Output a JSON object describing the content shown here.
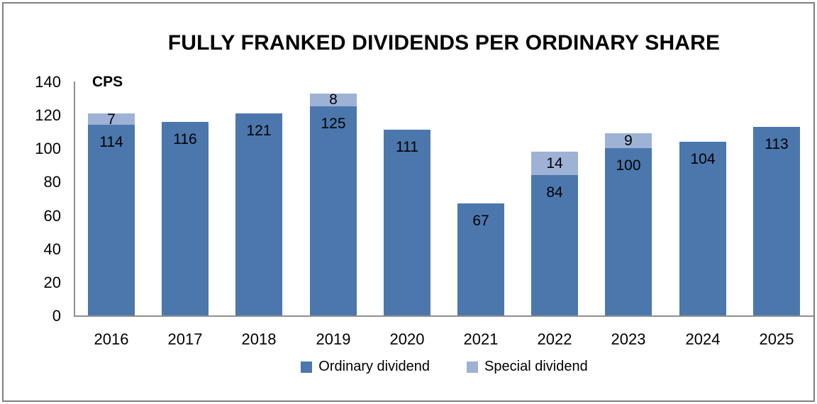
{
  "chart_data": {
    "type": "bar",
    "stacked": true,
    "title": "FULLY FRANKED DIVIDENDS PER ORDINARY SHARE",
    "ylabel": "CPS",
    "xlabel": "",
    "categories": [
      "2016",
      "2017",
      "2018",
      "2019",
      "2020",
      "2021",
      "2022",
      "2023",
      "2024",
      "2025"
    ],
    "series": [
      {
        "name": "Ordinary dividend",
        "color": "#4b77ad",
        "values": [
          114,
          116,
          121,
          125,
          111,
          67,
          84,
          100,
          104,
          113
        ]
      },
      {
        "name": "Special dividend",
        "color": "#9eb2d6",
        "values": [
          7,
          0,
          0,
          8,
          0,
          0,
          14,
          9,
          0,
          0
        ]
      }
    ],
    "totals": [
      121,
      116,
      121,
      133,
      111,
      67,
      98,
      109,
      104,
      113
    ],
    "ylim": [
      0,
      140
    ],
    "yticks": [
      0,
      20,
      40,
      60,
      80,
      100,
      120,
      140
    ],
    "grid": false,
    "legend_position": "bottom",
    "axis_color": "#8f8f8f",
    "border_color": "#7f7f7f",
    "label_color": "#000000"
  }
}
